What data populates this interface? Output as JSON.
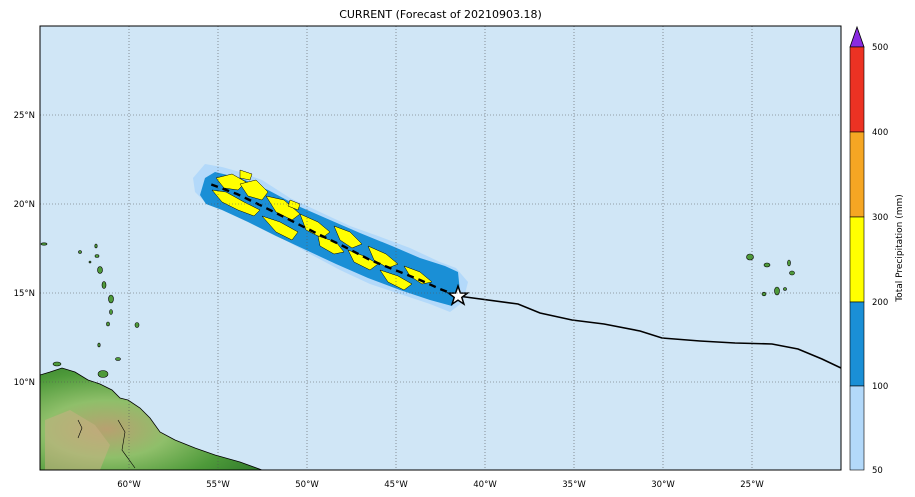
{
  "title": "CURRENT (Forecast of 20210903.18)",
  "map": {
    "ocean_color": "#d0e6f6",
    "grid_style": "dotted",
    "lon_labels": [
      "60°W",
      "55°W",
      "50°W",
      "45°W",
      "40°W",
      "35°W",
      "30°W",
      "25°W"
    ],
    "lat_labels": [
      "25°N",
      "20°N",
      "15°N",
      "10°N"
    ]
  },
  "colorbar": {
    "label": "Total Precipitation (mm)",
    "levels": [
      "50",
      "100",
      "200",
      "300",
      "400",
      "500"
    ],
    "colors": [
      "#b3d9fa",
      "#1a8fd6",
      "#ffff00",
      "#f5a623",
      "#ec3223"
    ],
    "over_color": "#8a2be2"
  },
  "storm": {
    "current_position_icon": "star-icon",
    "track_color": "#000000",
    "forecast_track_style": "dashed"
  }
}
